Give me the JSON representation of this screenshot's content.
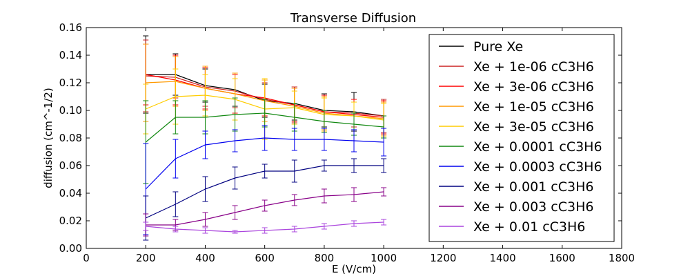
{
  "chart_data": {
    "type": "line",
    "title": "Transverse Diffusion",
    "xlabel": "E (V/cm)",
    "ylabel": "diffusion (cm^-1/2)",
    "xlim": [
      0,
      1800
    ],
    "ylim": [
      0,
      0.16
    ],
    "xticks": [
      0,
      200,
      400,
      600,
      800,
      1000,
      1200,
      1400,
      1600,
      1800
    ],
    "yticks": [
      0.0,
      0.02,
      0.04,
      0.06,
      0.08,
      0.1,
      0.12,
      0.14,
      0.16
    ],
    "x_tick_labels": [
      "0",
      "200",
      "400",
      "600",
      "800",
      "1000",
      "1200",
      "1400",
      "1600",
      "1800"
    ],
    "y_tick_labels": [
      "0.00",
      "0.02",
      "0.04",
      "0.06",
      "0.08",
      "0.10",
      "0.12",
      "0.14",
      "0.16"
    ],
    "grid": false,
    "legend_position": "top-right",
    "x": [
      200,
      300,
      400,
      500,
      600,
      700,
      800,
      900,
      1000
    ],
    "series": [
      {
        "name": "Pure Xe",
        "color": "#000000",
        "values": [
          0.126,
          0.126,
          0.118,
          0.115,
          0.107,
          0.105,
          0.1,
          0.099,
          0.096
        ],
        "errors": [
          0.028,
          0.015,
          0.012,
          0.012,
          0.012,
          0.012,
          0.012,
          0.014,
          0.012
        ]
      },
      {
        "name": "Xe + 1e-06 cC3H6",
        "color": "#cc2222",
        "values": [
          0.125,
          0.124,
          0.117,
          0.114,
          0.108,
          0.104,
          0.099,
          0.098,
          0.096
        ],
        "errors": [
          0.026,
          0.015,
          0.014,
          0.012,
          0.012,
          0.013,
          0.012,
          0.01,
          0.012
        ]
      },
      {
        "name": "Xe + 3e-06 cC3H6",
        "color": "#ff0000",
        "values": [
          0.126,
          0.122,
          0.116,
          0.112,
          0.109,
          0.104,
          0.099,
          0.097,
          0.095
        ],
        "errors": [
          0.022,
          0.018,
          0.015,
          0.014,
          0.013,
          0.012,
          0.012,
          0.011,
          0.012
        ]
      },
      {
        "name": "Xe + 1e-05 cC3H6",
        "color": "#ff9900",
        "values": [
          0.12,
          0.121,
          0.116,
          0.112,
          0.107,
          0.103,
          0.098,
          0.096,
          0.094
        ],
        "errors": [
          0.028,
          0.018,
          0.016,
          0.015,
          0.015,
          0.013,
          0.012,
          0.01,
          0.012
        ]
      },
      {
        "name": "Xe + 3e-05 cC3H6",
        "color": "#ffcc00",
        "values": [
          0.101,
          0.11,
          0.111,
          0.108,
          0.101,
          0.102,
          0.097,
          0.096,
          0.093
        ],
        "errors": [
          0.018,
          0.02,
          0.015,
          0.015,
          0.022,
          0.012,
          0.012,
          0.01,
          0.012
        ]
      },
      {
        "name": "Xe + 0.0001 cC3H6",
        "color": "#118811",
        "values": [
          0.077,
          0.095,
          0.095,
          0.097,
          0.098,
          0.095,
          0.092,
          0.09,
          0.088
        ],
        "errors": [
          0.03,
          0.012,
          0.012,
          0.012,
          0.01,
          0.01,
          0.008,
          0.008,
          0.008
        ]
      },
      {
        "name": "Xe + 0.0003 cC3H6",
        "color": "#0000ee",
        "values": [
          0.043,
          0.065,
          0.075,
          0.078,
          0.08,
          0.079,
          0.079,
          0.078,
          0.077
        ],
        "errors": [
          0.033,
          0.014,
          0.01,
          0.008,
          0.009,
          0.008,
          0.008,
          0.008,
          0.01
        ]
      },
      {
        "name": "Xe + 0.001 cC3H6",
        "color": "#000080",
        "values": [
          0.022,
          0.032,
          0.043,
          0.051,
          0.056,
          0.056,
          0.06,
          0.06,
          0.06
        ],
        "errors": [
          0.016,
          0.009,
          0.009,
          0.008,
          0.005,
          0.008,
          0.004,
          0.005,
          0.005
        ]
      },
      {
        "name": "Xe + 0.003 cC3H6",
        "color": "#880088",
        "values": [
          0.017,
          0.017,
          0.021,
          0.026,
          0.031,
          0.035,
          0.038,
          0.039,
          0.041
        ],
        "errors": [
          0.008,
          0.004,
          0.005,
          0.005,
          0.004,
          0.004,
          0.005,
          0.005,
          0.003
        ]
      },
      {
        "name": "Xe + 0.01 cC3H6",
        "color": "#aa44dd",
        "values": [
          0.016,
          0.014,
          0.013,
          0.012,
          0.013,
          0.014,
          0.016,
          0.018,
          0.019
        ],
        "errors": [
          0.003,
          0.002,
          0.002,
          0.001,
          0.002,
          0.002,
          0.002,
          0.002,
          0.002
        ]
      }
    ]
  }
}
